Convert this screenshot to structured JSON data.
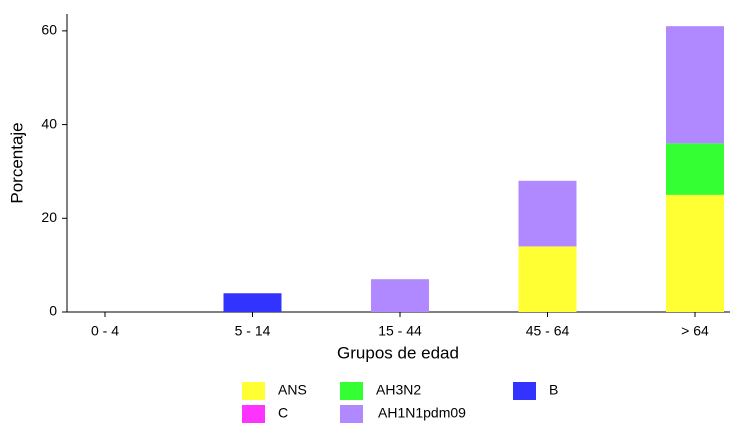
{
  "chart_data": {
    "type": "stacked_bar",
    "x_label": "Grupos de edad",
    "y_label": "Porcentaje",
    "categories": [
      "0 - 4",
      "5 - 14",
      "15 - 44",
      "45 - 64",
      "> 64"
    ],
    "series": [
      {
        "name": "ANS",
        "color": "#ffff33",
        "values": [
          0,
          0,
          0,
          14,
          25
        ]
      },
      {
        "name": "AH3N2",
        "color": "#33ff33",
        "values": [
          0,
          0,
          0,
          0,
          11
        ]
      },
      {
        "name": "B",
        "color": "#3333ff",
        "values": [
          0,
          4,
          0,
          0,
          0
        ]
      },
      {
        "name": "C",
        "color": "#ff33ff",
        "values": [
          0,
          0,
          0,
          0,
          0
        ]
      },
      {
        "name": "AH1N1pdm09",
        "color": "#b088ff",
        "values": [
          0,
          0,
          7,
          14,
          25
        ]
      }
    ],
    "ylim": [
      0,
      63.6
    ],
    "yticks": [
      0,
      20,
      40,
      60
    ],
    "grid": false
  }
}
